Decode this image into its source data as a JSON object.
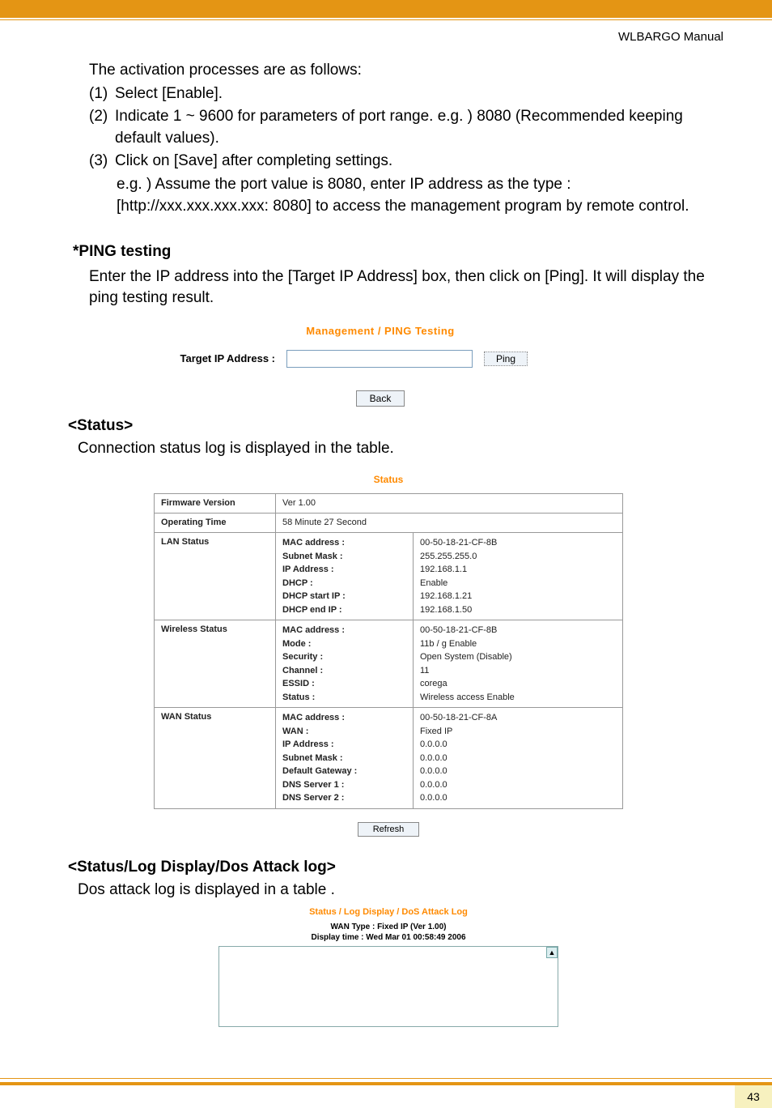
{
  "colors": {
    "accent": "#e49514",
    "heading_orange": "#ff8a00",
    "footer_bg": "#f7f1bf"
  },
  "header": {
    "manual": "WLBARGO Manual"
  },
  "intro": {
    "line": "The activation processes are as follows:"
  },
  "steps": {
    "s1": {
      "n": "(1)",
      "t": "Select [Enable]."
    },
    "s2": {
      "n": "(2)",
      "t": "Indicate 1 ~ 9600 for parameters of port range. e.g. ) 8080 (Recommended keeping default values)."
    },
    "s3": {
      "n": "(3)",
      "t": "Click on [Save] after completing settings."
    },
    "s3b": "e.g. ) Assume the port value is 8080, enter IP address as the type : [http://xxx.xxx.xxx.xxx: 8080] to access the management program by remote control."
  },
  "ping": {
    "heading": "*PING testing",
    "desc": "Enter the IP address into the [Target IP Address] box, then click on [Ping]. It will display the ping testing result.",
    "title": "Management / PING Testing",
    "label": "Target IP Address :",
    "ping_btn": "Ping",
    "back_btn": "Back"
  },
  "status": {
    "heading": "<Status>",
    "desc": "Connection status log is displayed in the table.",
    "title": "Status",
    "rows": {
      "fw": {
        "label": "Firmware Version",
        "val": "Ver 1.00"
      },
      "op": {
        "label": "Operating Time",
        "val": "58 Minute 27 Second"
      },
      "lan": {
        "label": "LAN Status",
        "k1": "MAC address :",
        "v1": "00-50-18-21-CF-8B",
        "k2": "Subnet Mask :",
        "v2": "255.255.255.0",
        "k3": "IP Address :",
        "v3": "192.168.1.1",
        "k4": "DHCP :",
        "v4": "Enable",
        "k5": "DHCP start IP :",
        "v5": "192.168.1.21",
        "k6": "DHCP end IP :",
        "v6": "192.168.1.50"
      },
      "wlan": {
        "label": "Wireless Status",
        "k1": "MAC address :",
        "v1": "00-50-18-21-CF-8B",
        "k2": "Mode :",
        "v2": "11b / g Enable",
        "k3": "Security :",
        "v3": "Open System (Disable)",
        "k4": "Channel :",
        "v4": "11",
        "k5": "ESSID :",
        "v5": "corega",
        "k6": "Status :",
        "v6": "Wireless access Enable"
      },
      "wan": {
        "label": "WAN Status",
        "k1": "MAC address :",
        "v1": "00-50-18-21-CF-8A",
        "k2": "WAN :",
        "v2": "Fixed IP",
        "k3": "IP Address :",
        "v3": "0.0.0.0",
        "k4": "Subnet Mask :",
        "v4": "0.0.0.0",
        "k5": "Default Gateway :",
        "v5": "0.0.0.0",
        "k6": "DNS Server 1 :",
        "v6": "0.0.0.0",
        "k7": "DNS Server 2 :",
        "v7": "0.0.0.0"
      }
    },
    "refresh": "Refresh"
  },
  "dos": {
    "heading": "<Status/Log Display/Dos Attack log>",
    "desc": "Dos attack log is displayed in a table .",
    "title": "Status / Log Display / DoS Attack Log",
    "meta1": "WAN Type : Fixed IP (Ver 1.00)",
    "meta2": "Display time : Wed Mar 01 00:58:49 2006",
    "scroll_glyph": "▲"
  },
  "page_num": "43"
}
